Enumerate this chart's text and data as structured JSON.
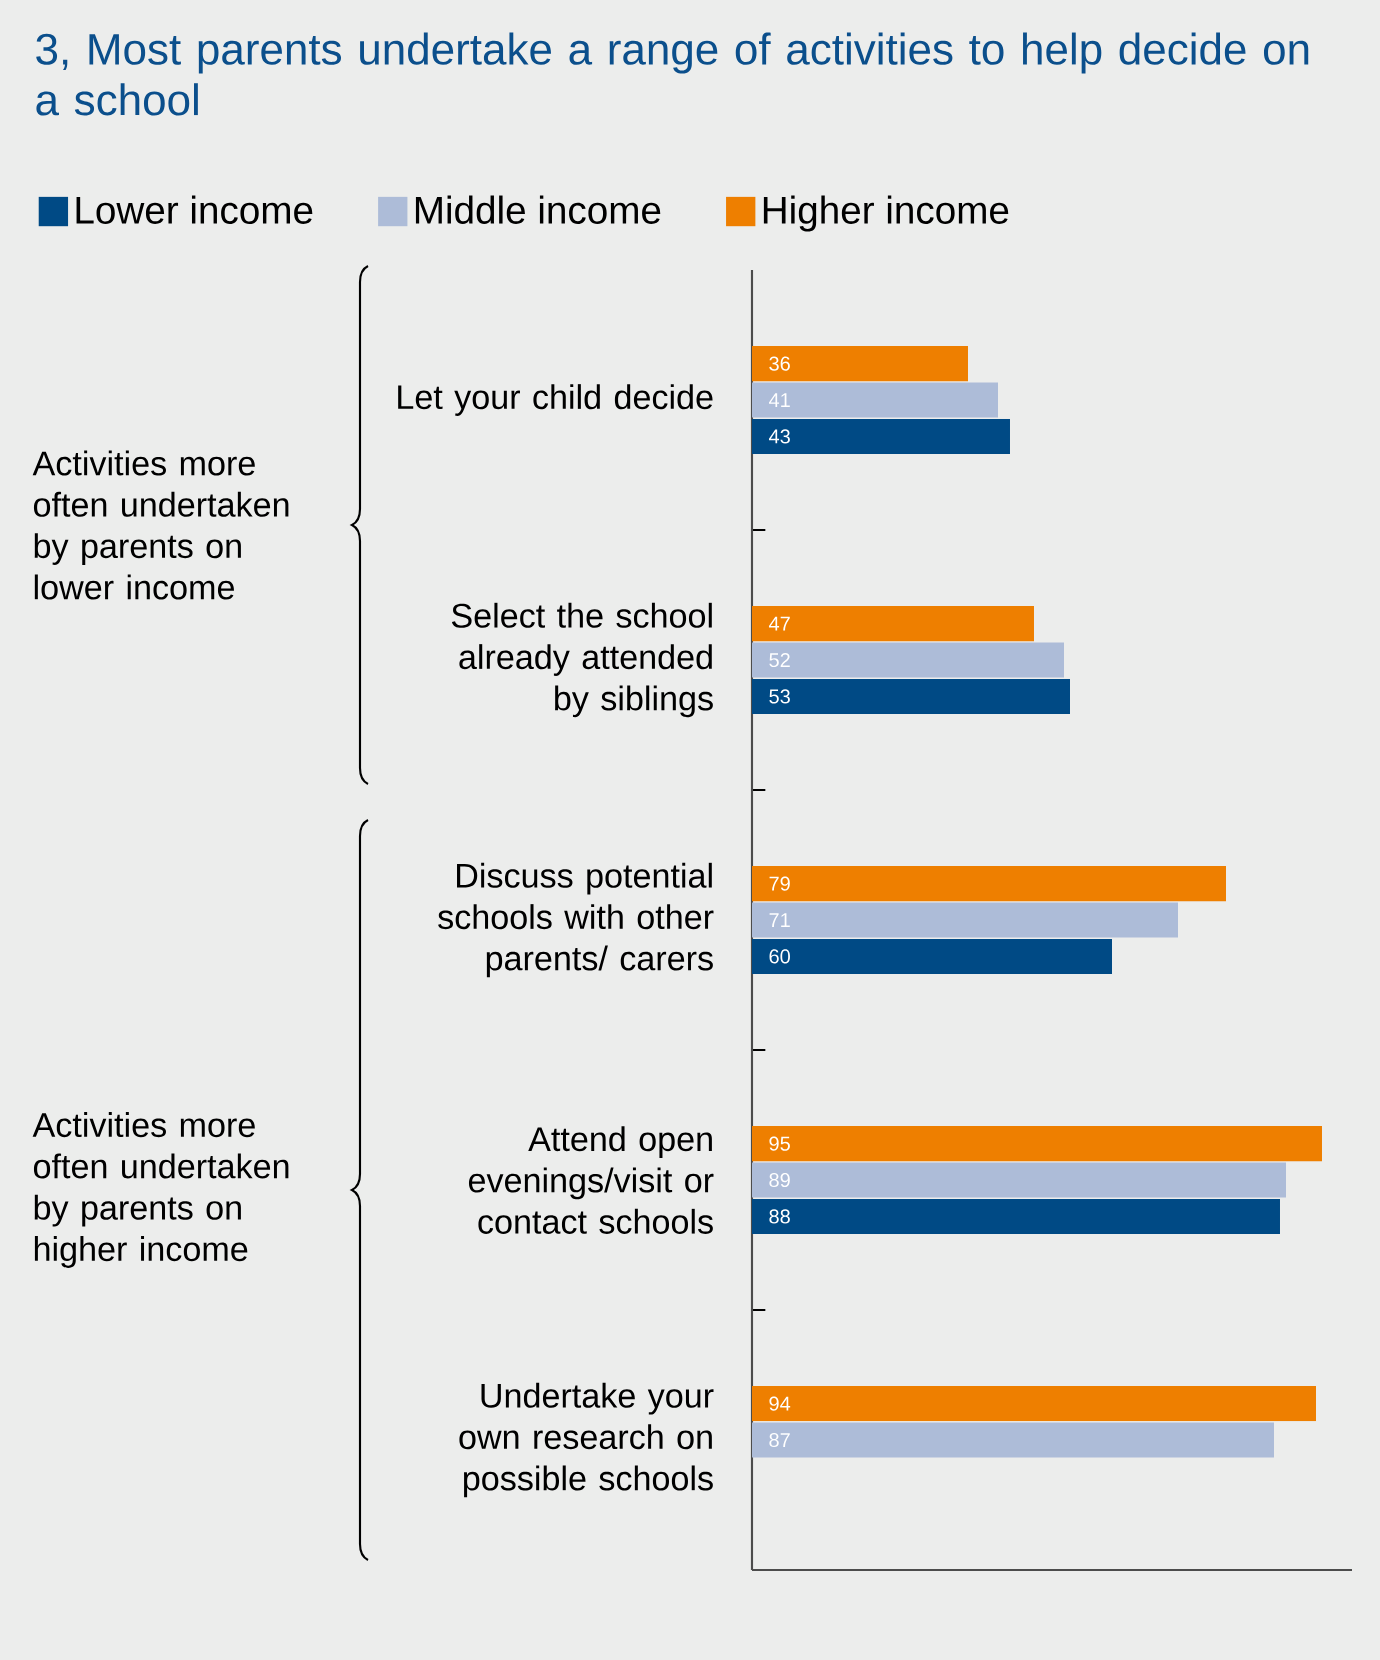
{
  "chart_data": {
    "type": "bar",
    "orientation": "horizontal",
    "title": "3, Most parents undertake a range of activities to help decide on a school",
    "categories": [
      "Let your child decide",
      "Select the school already attended by siblings",
      "Discuss potential schools with other parents/ carers",
      "Attend open evenings/visit or contact schools",
      "Undertake your own research on possible schools"
    ],
    "series": [
      {
        "name": "Lower income",
        "color": "#004a85",
        "values": [
          43,
          53,
          60,
          88,
          null
        ]
      },
      {
        "name": "Middle income",
        "color": "#adbcd8",
        "values": [
          41,
          52,
          71,
          89,
          87
        ]
      },
      {
        "name": "Higher income",
        "color": "#ee7f00",
        "values": [
          36,
          47,
          79,
          95,
          94
        ]
      }
    ],
    "xlim": [
      0,
      100
    ],
    "tick_labels": "y",
    "data_labels": true,
    "legend": "top",
    "grid": false,
    "annotations": [
      "Activities more often undertaken by parents on lower income",
      "Activities more often undertaken by parents on higher income"
    ]
  }
}
